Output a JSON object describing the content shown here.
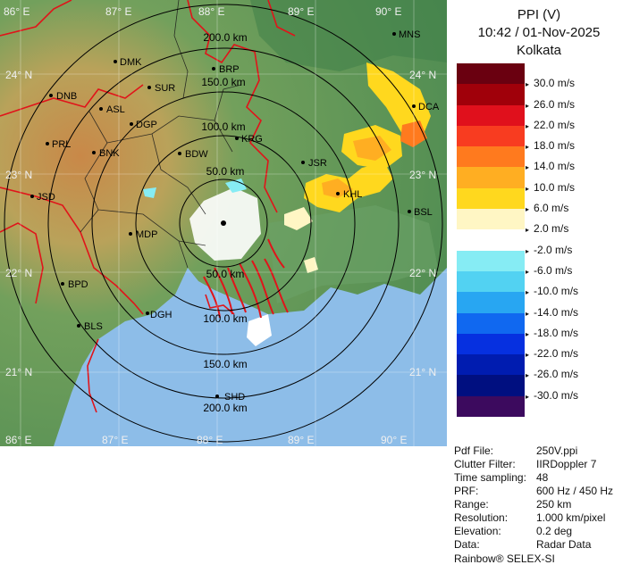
{
  "header": {
    "title": "PPI (V)",
    "datetime": "10:42 / 01-Nov-2025",
    "station": "Kolkata"
  },
  "colors": {
    "sea": "#8dbde8",
    "land_green": "#5e9a5a",
    "land_orange": "#d88a4c",
    "border": "#e0141a",
    "rings": "#000000"
  },
  "legend": [
    {
      "label": "30.0 m/s",
      "color": "#6a0010"
    },
    {
      "label": "26.0 m/s",
      "color": "#a0000a"
    },
    {
      "label": "22.0 m/s",
      "color": "#e0101c"
    },
    {
      "label": "18.0 m/s",
      "color": "#f83c20"
    },
    {
      "label": "14.0 m/s",
      "color": "#ff7a1e"
    },
    {
      "label": "10.0 m/s",
      "color": "#ffae22"
    },
    {
      "label": "6.0 m/s",
      "color": "#ffd81e"
    },
    {
      "label": "2.0 m/s",
      "color": "#fff6c4"
    },
    {
      "label": "-2.0 m/s",
      "color": "#ffffff"
    },
    {
      "label": "-6.0 m/s",
      "color": "#86ecf4"
    },
    {
      "label": "-10.0 m/s",
      "color": "#52d2f2"
    },
    {
      "label": "-14.0 m/s",
      "color": "#28a6f2"
    },
    {
      "label": "-18.0 m/s",
      "color": "#1068f0"
    },
    {
      "label": "-22.0 m/s",
      "color": "#0630e0"
    },
    {
      "label": "-26.0 m/s",
      "color": "#001cb0"
    },
    {
      "label": "-30.0 m/s",
      "color": "#000f80"
    },
    {
      "label": "",
      "color": "#3c0a5e"
    }
  ],
  "info": [
    {
      "key": "Pdf File:",
      "value": "250V.ppi"
    },
    {
      "key": "Clutter Filter:",
      "value": "IIRDoppler 7"
    },
    {
      "key": "Time sampling:",
      "value": "48"
    },
    {
      "key": "PRF:",
      "value": "600 Hz / 450 Hz"
    },
    {
      "key": "Range:",
      "value": "250 km"
    },
    {
      "key": "Resolution:",
      "value": "1.000 km/pixel"
    },
    {
      "key": "Elevation:",
      "value": "0.2 deg"
    },
    {
      "key": "Data:",
      "value": "Radar Data"
    }
  ],
  "footer": "Rainbow® SELEX-SI",
  "map": {
    "rings": [
      "50.0 km",
      "100.0 km",
      "150.0 km",
      "200.0 km"
    ],
    "lon_labels": [
      "86° E",
      "87° E",
      "88° E",
      "89° E",
      "90° E"
    ],
    "lat_labels": [
      "24° N",
      "23° N",
      "22° N",
      "21° N"
    ],
    "cities": [
      "MNS",
      "DMK",
      "BRP",
      "SUR",
      "DNB",
      "ASL",
      "DCA",
      "DGP",
      "KRG",
      "PRL",
      "BNK",
      "BDW",
      "JSR",
      "KHL",
      "JSD",
      "BSL",
      "MDP",
      "BPD",
      "DGH",
      "BLS",
      "SHD"
    ]
  }
}
